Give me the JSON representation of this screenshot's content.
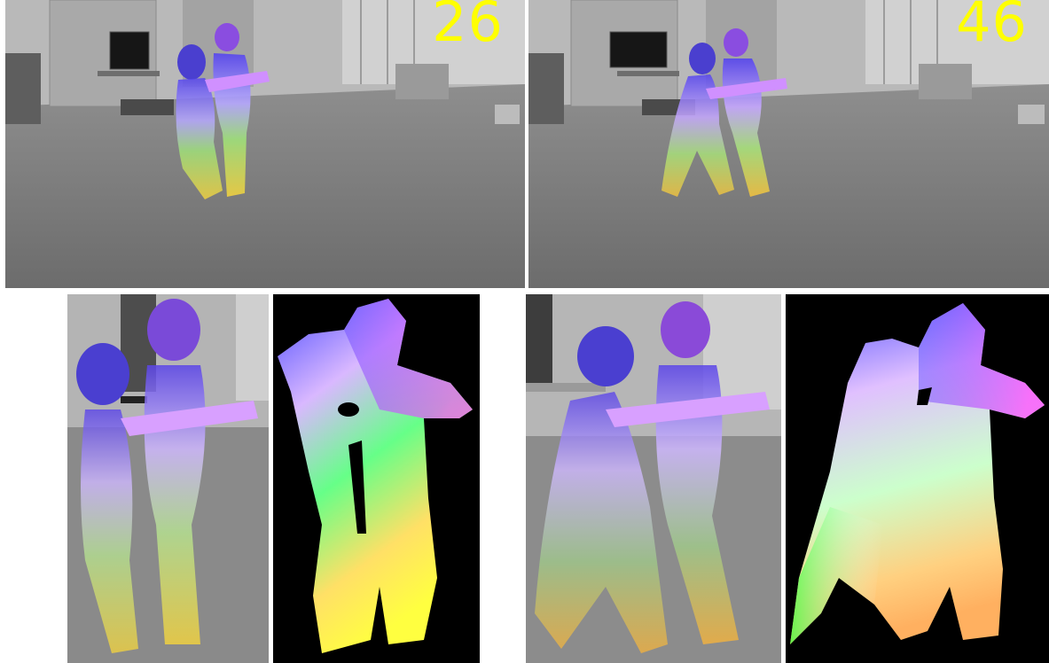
{
  "frames": [
    {
      "number_label": "26"
    },
    {
      "number_label": "46"
    }
  ],
  "colors": {
    "frame_number": "#ffff00",
    "map_background": "#000000",
    "divider": "#ffffff"
  }
}
